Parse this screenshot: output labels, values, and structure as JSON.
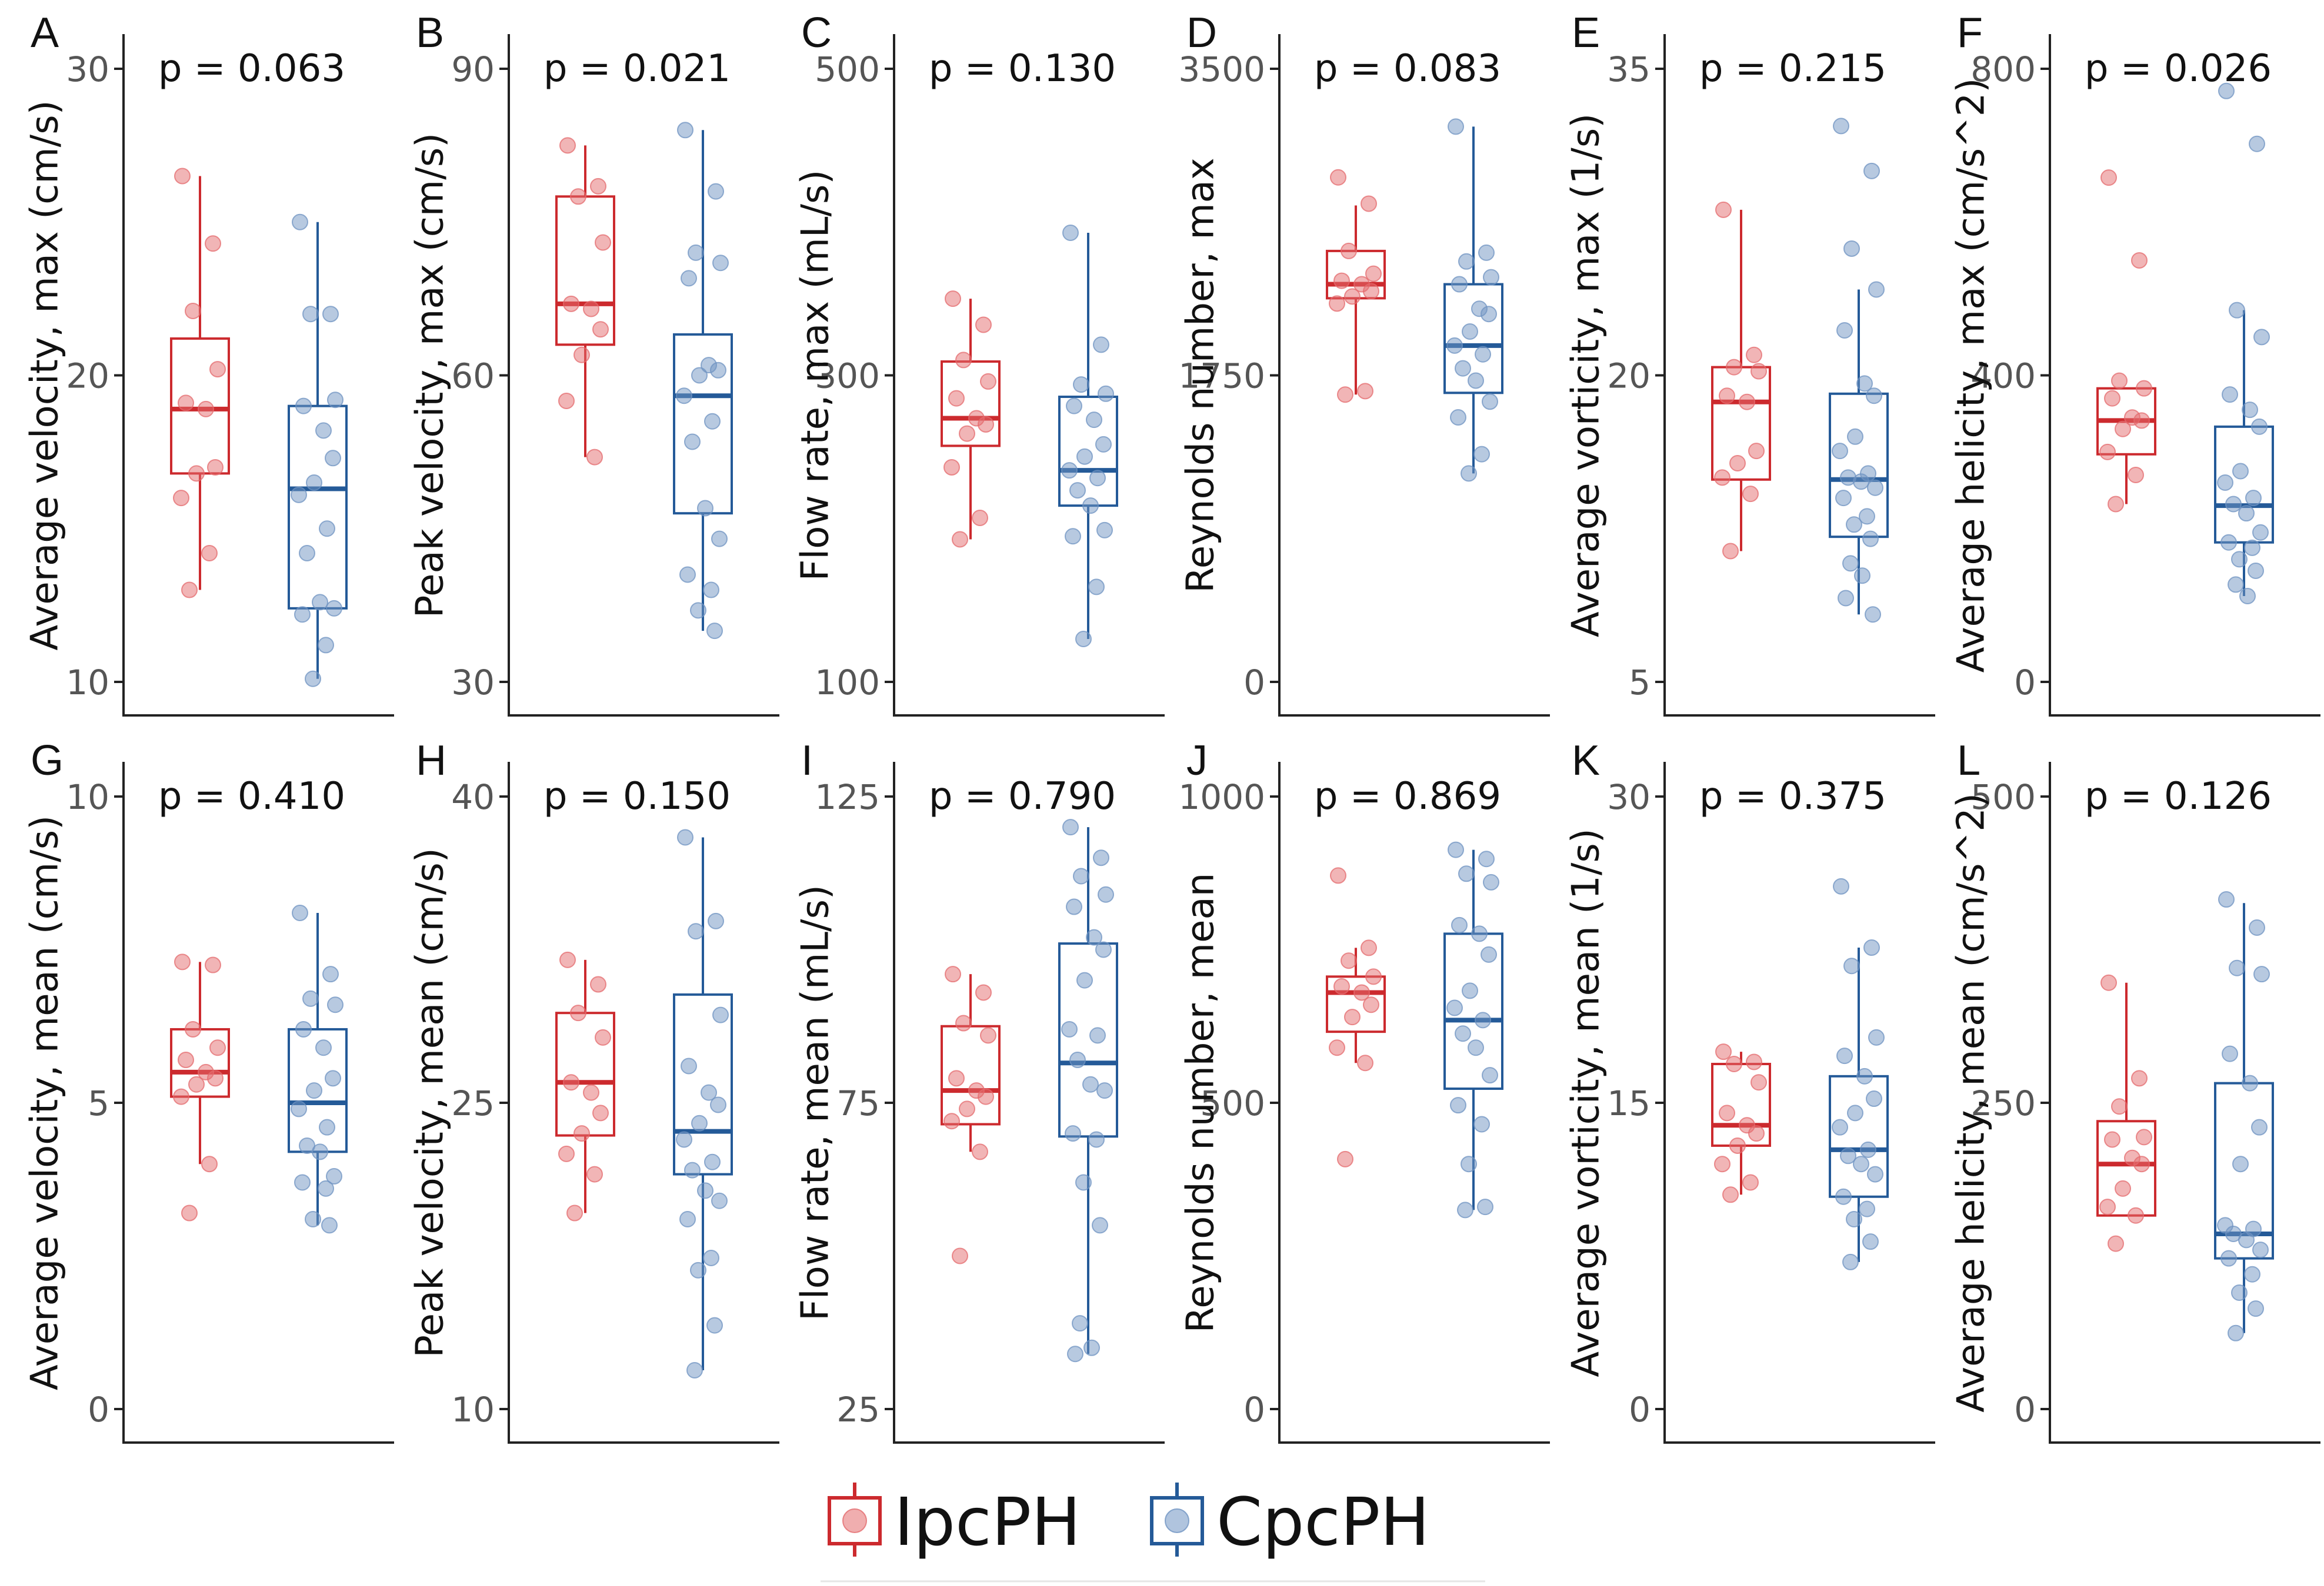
{
  "colors": {
    "ipcph": "#cc2a2e",
    "ipcph_point": "#e46b6e",
    "cpcph": "#245a98",
    "cpcph_point": "#6f93c2",
    "axis": "#222222",
    "tick_text": "#555555",
    "text": "#111111"
  },
  "legend": {
    "items": [
      {
        "key": "ipcph",
        "label": "IpcPH"
      },
      {
        "key": "cpcph",
        "label": "CpcPH"
      }
    ]
  },
  "chart_data": [
    {
      "type": "box",
      "panel": "A",
      "p_value": "p = 0.063",
      "ylabel": "Average velocity, max (cm/s)",
      "ylim": [
        10,
        30
      ],
      "ticks": [
        10,
        20,
        30
      ],
      "tick_labels": [
        "10",
        "20",
        "30"
      ],
      "series": [
        {
          "name": "IpcPH",
          "box": {
            "min": 13.0,
            "q1": 16.8,
            "median": 18.9,
            "q3": 21.2,
            "max": 26.5
          },
          "points": [
            26.5,
            24.3,
            22.1,
            20.2,
            19.1,
            18.9,
            17.0,
            16.8,
            16.0,
            14.2,
            13.0
          ]
        },
        {
          "name": "CpcPH",
          "box": {
            "min": 10.1,
            "q1": 12.4,
            "median": 16.3,
            "q3": 19.0,
            "max": 25.0
          },
          "points": [
            25.0,
            22.0,
            22.0,
            19.2,
            19.0,
            18.2,
            17.3,
            16.5,
            16.1,
            15.0,
            14.2,
            12.6,
            12.4,
            12.2,
            11.2,
            10.1
          ]
        }
      ]
    },
    {
      "type": "box",
      "panel": "B",
      "p_value": "p = 0.021",
      "ylabel": "Peak velocity, max (cm/s)",
      "ylim": [
        30,
        90
      ],
      "ticks": [
        30,
        60,
        90
      ],
      "tick_labels": [
        "30",
        "60",
        "90"
      ],
      "series": [
        {
          "name": "IpcPH",
          "box": {
            "min": 52.0,
            "q1": 63.0,
            "median": 67.0,
            "q3": 77.5,
            "max": 82.5
          },
          "points": [
            82.5,
            78.5,
            77.5,
            73.0,
            67.0,
            66.5,
            64.5,
            62.0,
            57.5,
            52.0
          ]
        },
        {
          "name": "CpcPH",
          "box": {
            "min": 35.0,
            "q1": 46.5,
            "median": 58.0,
            "q3": 64.0,
            "max": 84.0
          },
          "points": [
            84.0,
            78.0,
            72.0,
            71.0,
            69.5,
            61.0,
            60.5,
            60.0,
            58.0,
            55.5,
            53.5,
            47.0,
            44.0,
            40.5,
            39.0,
            37.0,
            35.0
          ]
        }
      ]
    },
    {
      "type": "box",
      "panel": "C",
      "p_value": "p = 0.130",
      "ylabel": "Flow rate, max (mL/s)",
      "ylim": [
        100,
        500
      ],
      "ticks": [
        100,
        300,
        500
      ],
      "tick_labels": [
        "100",
        "300",
        "500"
      ],
      "series": [
        {
          "name": "IpcPH",
          "box": {
            "min": 193,
            "q1": 254,
            "median": 272,
            "q3": 309,
            "max": 350
          },
          "points": [
            350,
            333,
            310,
            296,
            285,
            272,
            268,
            262,
            240,
            207,
            193
          ]
        },
        {
          "name": "CpcPH",
          "box": {
            "min": 128,
            "q1": 215,
            "median": 238,
            "q3": 286,
            "max": 393
          },
          "points": [
            393,
            320,
            294,
            288,
            280,
            271,
            255,
            247,
            238,
            233,
            225,
            215,
            199,
            195,
            162,
            128
          ]
        }
      ]
    },
    {
      "type": "box",
      "panel": "D",
      "p_value": "p = 0.083",
      "ylabel": "Reynolds number, max",
      "ylim": [
        0,
        3500
      ],
      "ticks": [
        0,
        1750,
        3500
      ],
      "tick_labels": [
        "0",
        "1750",
        "3500"
      ],
      "series": [
        {
          "name": "IpcPH",
          "box": {
            "min": 1640,
            "q1": 2190,
            "median": 2270,
            "q3": 2460,
            "max": 2720
          },
          "points": [
            2880,
            2730,
            2460,
            2330,
            2290,
            2270,
            2230,
            2200,
            2160,
            1660,
            1640
          ]
        },
        {
          "name": "CpcPH",
          "box": {
            "min": 1190,
            "q1": 1650,
            "median": 1920,
            "q3": 2270,
            "max": 3170
          },
          "points": [
            3170,
            2450,
            2400,
            2310,
            2270,
            2130,
            2100,
            2000,
            1920,
            1870,
            1790,
            1720,
            1600,
            1510,
            1300,
            1190
          ]
        }
      ]
    },
    {
      "type": "box",
      "panel": "E",
      "p_value": "p = 0.215",
      "ylabel": "Average vorticity, max (1/s)",
      "ylim": [
        5,
        35
      ],
      "ticks": [
        5,
        20,
        35
      ],
      "tick_labels": [
        "5",
        "20",
        "35"
      ],
      "series": [
        {
          "name": "IpcPH",
          "box": {
            "min": 11.4,
            "q1": 14.9,
            "median": 18.7,
            "q3": 20.4,
            "max": 28.1
          },
          "points": [
            28.1,
            21.0,
            20.4,
            20.2,
            19.0,
            18.7,
            16.3,
            15.7,
            15.0,
            14.2,
            11.4
          ]
        },
        {
          "name": "CpcPH",
          "box": {
            "min": 8.3,
            "q1": 12.1,
            "median": 14.9,
            "q3": 19.1,
            "max": 24.2
          },
          "points": [
            32.2,
            30.0,
            26.2,
            24.2,
            22.2,
            19.6,
            19.0,
            17.0,
            16.3,
            15.2,
            15.0,
            14.8,
            14.5,
            14.0,
            13.1,
            12.7,
            12.0,
            10.8,
            10.2,
            9.1,
            8.3
          ]
        }
      ]
    },
    {
      "type": "box",
      "panel": "F",
      "p_value": "p = 0.026",
      "ylabel": "Average helicity, max (cm/s^2)",
      "ylim": [
        0,
        800
      ],
      "ticks": [
        0,
        400,
        800
      ],
      "tick_labels": [
        "0",
        "400",
        "800"
      ],
      "series": [
        {
          "name": "IpcPH",
          "box": {
            "min": 232,
            "q1": 297,
            "median": 341,
            "q3": 383,
            "max": 383
          },
          "points": [
            658,
            550,
            393,
            383,
            370,
            345,
            341,
            330,
            300,
            270,
            232
          ]
        },
        {
          "name": "CpcPH",
          "box": {
            "min": 112,
            "q1": 182,
            "median": 230,
            "q3": 333,
            "max": 485
          },
          "points": [
            771,
            702,
            485,
            450,
            375,
            355,
            333,
            275,
            260,
            240,
            232,
            220,
            195,
            182,
            175,
            160,
            145,
            127,
            112
          ]
        }
      ]
    },
    {
      "type": "box",
      "panel": "G",
      "p_value": "p = 0.410",
      "ylabel": "Average velocity, mean (cm/s)",
      "ylim": [
        0,
        10
      ],
      "ticks": [
        0,
        5,
        10
      ],
      "tick_labels": [
        "0",
        "5",
        "10"
      ],
      "series": [
        {
          "name": "IpcPH",
          "box": {
            "min": 4.0,
            "q1": 5.1,
            "median": 5.5,
            "q3": 6.2,
            "max": 7.3
          },
          "points": [
            7.3,
            7.25,
            6.2,
            5.9,
            5.7,
            5.5,
            5.4,
            5.3,
            5.1,
            4.0,
            3.2
          ]
        },
        {
          "name": "CpcPH",
          "box": {
            "min": 3.0,
            "q1": 4.2,
            "median": 5.0,
            "q3": 6.2,
            "max": 8.1
          },
          "points": [
            8.1,
            7.1,
            6.7,
            6.6,
            6.2,
            5.9,
            5.4,
            5.2,
            4.9,
            4.6,
            4.3,
            4.2,
            3.8,
            3.7,
            3.6,
            3.1,
            3.0
          ]
        }
      ]
    },
    {
      "type": "box",
      "panel": "H",
      "p_value": "p = 0.150",
      "ylabel": "Peak velocity, mean (cm/s)",
      "ylim": [
        10,
        40
      ],
      "ticks": [
        10,
        25,
        40
      ],
      "tick_labels": [
        "10",
        "25",
        "40"
      ],
      "series": [
        {
          "name": "IpcPH",
          "box": {
            "min": 19.6,
            "q1": 23.4,
            "median": 26.0,
            "q3": 29.4,
            "max": 32.0
          },
          "points": [
            32.0,
            30.8,
            29.4,
            28.2,
            26.0,
            25.5,
            24.5,
            23.5,
            22.5,
            21.5,
            19.6
          ]
        },
        {
          "name": "CpcPH",
          "box": {
            "min": 11.9,
            "q1": 21.5,
            "median": 23.6,
            "q3": 30.3,
            "max": 38.0
          },
          "points": [
            38.0,
            33.9,
            33.4,
            29.3,
            26.8,
            25.5,
            24.9,
            24.0,
            23.2,
            22.1,
            21.7,
            20.7,
            20.2,
            19.3,
            17.4,
            16.8,
            14.1,
            11.9
          ]
        }
      ]
    },
    {
      "type": "box",
      "panel": "I",
      "p_value": "p = 0.790",
      "ylabel": "Flow rate, mean (mL/s)",
      "ylim": [
        25,
        125
      ],
      "ticks": [
        25,
        75,
        125
      ],
      "tick_labels": [
        "25",
        "75",
        "125"
      ],
      "series": [
        {
          "name": "IpcPH",
          "box": {
            "min": 67,
            "q1": 71.5,
            "median": 77,
            "q3": 87.5,
            "max": 96
          },
          "points": [
            96,
            93,
            88,
            86,
            79,
            77,
            76,
            74,
            72,
            67,
            50
          ]
        },
        {
          "name": "CpcPH",
          "box": {
            "min": 34,
            "q1": 69.5,
            "median": 81.5,
            "q3": 101,
            "max": 120
          },
          "points": [
            120,
            115,
            112,
            109,
            107,
            102,
            100,
            95,
            87,
            86,
            82,
            78,
            77,
            70,
            69,
            62,
            55,
            39,
            35,
            34
          ]
        }
      ]
    },
    {
      "type": "box",
      "panel": "J",
      "p_value": "p = 0.869",
      "ylabel": "Reynolds number, mean",
      "ylim": [
        0,
        1000
      ],
      "ticks": [
        0,
        500,
        1000
      ],
      "tick_labels": [
        "0",
        "500",
        "1000"
      ],
      "series": [
        {
          "name": "IpcPH",
          "box": {
            "min": 565,
            "q1": 616,
            "median": 680,
            "q3": 706,
            "max": 753
          },
          "points": [
            871,
            753,
            732,
            706,
            690,
            680,
            660,
            640,
            590,
            565,
            408
          ]
        },
        {
          "name": "CpcPH",
          "box": {
            "min": 325,
            "q1": 523,
            "median": 635,
            "q3": 776,
            "max": 913
          },
          "points": [
            913,
            898,
            874,
            860,
            790,
            776,
            742,
            683,
            655,
            635,
            613,
            590,
            545,
            496,
            465,
            400,
            330,
            325
          ]
        }
      ]
    },
    {
      "type": "box",
      "panel": "K",
      "p_value": "p = 0.375",
      "ylabel": "Average vorticity, mean (1/s)",
      "ylim": [
        0,
        30
      ],
      "ticks": [
        0,
        15,
        30
      ],
      "tick_labels": [
        "0",
        "15",
        "30"
      ],
      "series": [
        {
          "name": "IpcPH",
          "box": {
            "min": 10.5,
            "q1": 12.9,
            "median": 13.9,
            "q3": 16.9,
            "max": 17.5
          },
          "points": [
            17.5,
            17.0,
            16.9,
            16.0,
            14.5,
            13.9,
            13.5,
            12.9,
            12.0,
            11.1,
            10.5
          ]
        },
        {
          "name": "CpcPH",
          "box": {
            "min": 7.2,
            "q1": 10.4,
            "median": 12.7,
            "q3": 16.3,
            "max": 22.6
          },
          "points": [
            25.6,
            22.6,
            21.7,
            18.2,
            17.3,
            16.3,
            15.2,
            14.5,
            13.8,
            12.7,
            12.4,
            12.0,
            11.5,
            10.4,
            9.8,
            9.3,
            8.2,
            7.2
          ]
        }
      ]
    },
    {
      "type": "box",
      "panel": "L",
      "p_value": "p = 0.126",
      "ylabel": "Average helicity, mean (cm/s^2)",
      "ylim": [
        0,
        500
      ],
      "ticks": [
        0,
        250,
        500
      ],
      "tick_labels": [
        "0",
        "250",
        "500"
      ],
      "series": [
        {
          "name": "IpcPH",
          "box": {
            "min": 158,
            "q1": 158,
            "median": 200,
            "q3": 235,
            "max": 348
          },
          "points": [
            348,
            270,
            247,
            222,
            220,
            205,
            200,
            180,
            165,
            158,
            135
          ]
        },
        {
          "name": "CpcPH",
          "box": {
            "min": 62,
            "q1": 123,
            "median": 143,
            "q3": 266,
            "max": 413
          },
          "points": [
            416,
            393,
            360,
            355,
            290,
            266,
            230,
            200,
            150,
            147,
            143,
            138,
            130,
            123,
            110,
            95,
            82,
            62
          ]
        }
      ]
    }
  ]
}
